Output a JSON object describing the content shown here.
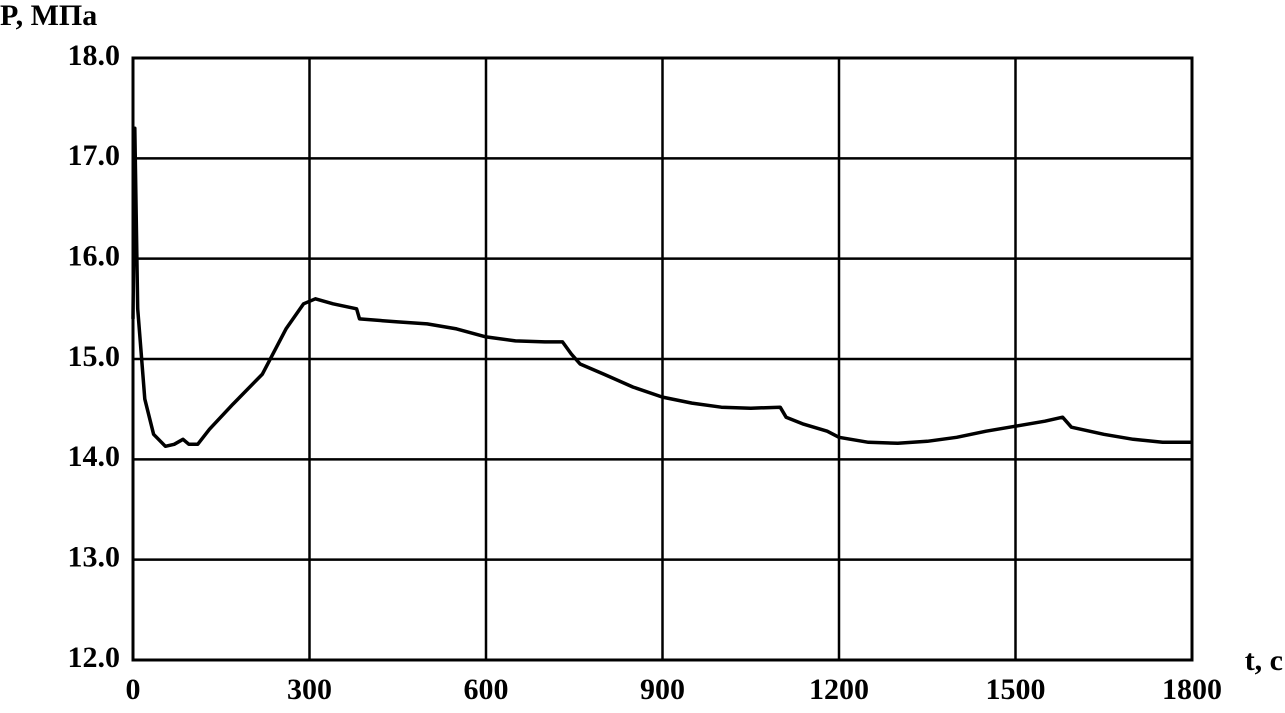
{
  "chart_data": {
    "type": "line",
    "y_label": "P, МПа",
    "x_label": "t, c",
    "x": [
      0,
      3,
      8,
      20,
      35,
      55,
      70,
      85,
      95,
      110,
      130,
      170,
      220,
      260,
      290,
      310,
      340,
      380,
      385,
      450,
      500,
      550,
      600,
      650,
      700,
      730,
      745,
      760,
      800,
      850,
      900,
      950,
      1000,
      1050,
      1100,
      1110,
      1140,
      1180,
      1200,
      1250,
      1300,
      1350,
      1400,
      1450,
      1500,
      1550,
      1580,
      1595,
      1650,
      1700,
      1750,
      1800
    ],
    "series": [
      {
        "color": "#000000",
        "values": [
          15.4,
          17.3,
          15.5,
          14.6,
          14.25,
          14.13,
          14.15,
          14.2,
          14.15,
          14.15,
          14.3,
          14.55,
          14.85,
          15.3,
          15.55,
          15.6,
          15.55,
          15.5,
          15.4,
          15.37,
          15.35,
          15.3,
          15.22,
          15.18,
          15.17,
          15.17,
          15.05,
          14.95,
          14.85,
          14.72,
          14.62,
          14.56,
          14.52,
          14.51,
          14.52,
          14.42,
          14.35,
          14.28,
          14.22,
          14.17,
          14.16,
          14.18,
          14.22,
          14.28,
          14.33,
          14.38,
          14.42,
          14.32,
          14.25,
          14.2,
          14.17,
          14.17
        ]
      }
    ],
    "xlim": [
      0,
      1800
    ],
    "xticks": [
      0,
      300,
      600,
      900,
      1200,
      1500,
      1800
    ],
    "ylim": [
      12,
      18
    ],
    "yticks": [
      {
        "value": 12,
        "label": "12.0"
      },
      {
        "value": 13,
        "label": "13.0"
      },
      {
        "value": 14,
        "label": "14.0"
      },
      {
        "value": 15,
        "label": "15.0"
      },
      {
        "value": 16,
        "label": "16.0"
      },
      {
        "value": 17,
        "label": "17.0"
      },
      {
        "value": 18,
        "label": "18.0"
      }
    ],
    "grid": true
  }
}
